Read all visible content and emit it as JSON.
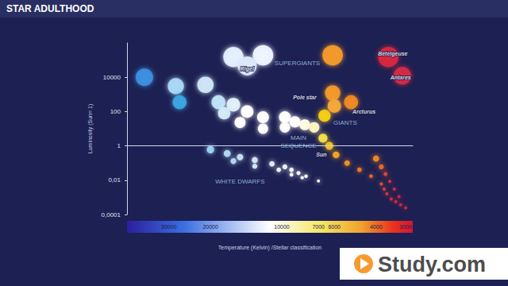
{
  "chart_data": {
    "type": "scatter",
    "title": "STAR ADULTHOOD",
    "xlabel": "Temperature (Kelvin) /Stellar classification",
    "ylabel": "Luminosity (Sun= 1)",
    "log": true,
    "grid": false,
    "xlim": [
      45000,
      2800
    ],
    "ylim": [
      0.0001,
      1000000
    ],
    "xticks": [
      30000,
      20000,
      10000,
      7000,
      6000,
      4000,
      3000
    ],
    "yticks": [
      {
        "value": 0.0001,
        "label": "0,0001"
      },
      {
        "value": 0.01,
        "label": "0,01"
      },
      1,
      100,
      10000
    ],
    "series": [
      {
        "x": [
          16000,
          12000,
          14000,
          6100,
          3550,
          3100
        ],
        "values": [
          150000,
          190000,
          46000,
          190000,
          150000,
          12000
        ],
        "colors": [
          "#e6f0ff",
          "#eef4ff",
          "#dce9fb",
          "#f39a2b",
          "#d8283f",
          "#d42a45"
        ]
      },
      {
        "x": [
          6600,
          6100,
          6000,
          5100
        ],
        "values": [
          57,
          1200,
          210,
          350
        ],
        "colors": [
          "#f7d117",
          "#f39a2b",
          "#f5a83a",
          "#f08a24"
        ]
      },
      {
        "x": [
          38000,
          28000,
          27000,
          21000,
          18500,
          16000,
          17500,
          14000,
          15000,
          12000,
          12000,
          9700,
          9700,
          8800,
          8000,
          7300,
          6700,
          6300,
          5900,
          5300,
          4700,
          4200,
          3800,
          3700,
          3600,
          3450,
          3300,
          3150,
          3000,
          4000,
          3800,
          3650,
          3500,
          3350,
          3200
        ],
        "values": [
          10000,
          3000,
          350,
          3600,
          350,
          250,
          80,
          100,
          23,
          47,
          10,
          47,
          12,
          25,
          17,
          12,
          2.8,
          1,
          0.3,
          0.1,
          0.04,
          0.017,
          0.006,
          0.003,
          0.0016,
          0.0008,
          0.00056,
          0.00037,
          0.00025,
          0.18,
          0.06,
          0.023,
          0.0085,
          0.003,
          0.0011
        ],
        "colors": [
          "#3d8fe0",
          "#a9d9f5",
          "#3aa5e3",
          "#cfe6f8",
          "#bfe3f7",
          "#e2f1fb",
          "#d3ecfa",
          "#ffffff",
          "#ffffff",
          "#ffffff",
          "#ffffff",
          "#ffffff",
          "#ffffff",
          "#ffffff",
          "#fffde8",
          "#fff7c2",
          "#f5e04a",
          "#f4c21e",
          "#f5a623",
          "#f39422",
          "#ef7a26",
          "#ea6a2a",
          "#e5562e",
          "#e04632",
          "#db3a36",
          "#d8313a",
          "#d42c3d",
          "#d02a40",
          "#cc2842",
          "#f08a24",
          "#ea6a2a",
          "#e04a32",
          "#d8383a",
          "#d22e3e",
          "#cc2842"
        ]
      },
      {
        "x": [
          20000,
          17000,
          15000,
          13000,
          11000,
          9700,
          9100,
          8500,
          7900,
          7000,
          16000,
          13000,
          10300,
          9100,
          8200
        ],
        "values": [
          0.6,
          0.36,
          0.22,
          0.15,
          0.09,
          0.06,
          0.04,
          0.026,
          0.017,
          0.009,
          0.13,
          0.065,
          0.04,
          0.021,
          0.014
        ],
        "colors": [
          "#9fd3f3",
          "#b5dcf5",
          "#c7e5f7",
          "#d6ecf9",
          "#e3f2fb",
          "#eef7fd",
          "#f5faff",
          "#ffffff",
          "#ffffff",
          "#ffffff",
          "#b5dcf5",
          "#d6ecf9",
          "#eef7fd",
          "#ffffff",
          "#ffffff"
        ]
      }
    ],
    "annotations": [
      {
        "text": "SUPERGIANTS",
        "x": 8600,
        "y": 69000
      },
      {
        "text": "Rigel",
        "x": 14000,
        "y": 30000
      },
      {
        "text": "Betelgeuse",
        "x": 3400,
        "y": 230000
      },
      {
        "text": "Antares",
        "x": 3150,
        "y": 10000
      },
      {
        "text": "Pole star",
        "x": 8000,
        "y": 650
      },
      {
        "text": "Arcturus",
        "x": 4500,
        "y": 95
      },
      {
        "text": "GIANTS",
        "x": 5400,
        "y": 23
      },
      {
        "text": "MAIN\nSEQUENCE",
        "x": 8500,
        "y": 1.8
      },
      {
        "text": "Sun",
        "x": 6800,
        "y": 0.3
      },
      {
        "text": "WHITE DWARFS",
        "x": 15000,
        "y": 0.008
      }
    ],
    "watermark": "Study.com"
  }
}
